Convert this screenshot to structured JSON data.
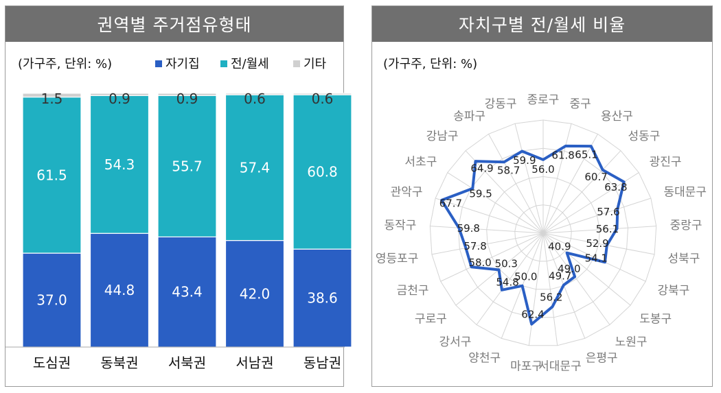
{
  "left_panel": {
    "title": "권역별 주거점유형태",
    "unit": "(가구주, 단위: %)",
    "legend": [
      {
        "label": "자기집",
        "color": "#2a5fc4"
      },
      {
        "label": "전/월세",
        "color": "#1fb0c2"
      },
      {
        "label": "기타",
        "color": "#d0d0d0"
      }
    ]
  },
  "right_panel": {
    "title": "자치구별 전/월세 비율",
    "unit": "(가구주, 단위: %)"
  },
  "chart_data": [
    {
      "type": "bar",
      "stacked": true,
      "categories": [
        "도심권",
        "동북권",
        "서북권",
        "서남권",
        "동남권"
      ],
      "series": [
        {
          "name": "자기집",
          "values": [
            37.0,
            44.8,
            43.4,
            42.0,
            38.6
          ],
          "color": "#2a5fc4"
        },
        {
          "name": "전/월세",
          "values": [
            61.5,
            54.3,
            55.7,
            57.4,
            60.8
          ],
          "color": "#1fb0c2"
        },
        {
          "name": "기타",
          "values": [
            1.5,
            0.9,
            0.9,
            0.6,
            0.6
          ],
          "color": "#d0d0d0"
        }
      ],
      "value_labels": {
        "자기집": [
          "37.0",
          "44.8",
          "43.4",
          "42.0",
          "38.6"
        ],
        "전/월세": [
          "61.5",
          "54.3",
          "55.7",
          "57.4",
          "60.8"
        ],
        "기타": [
          "1.5",
          "0.9",
          "0.9",
          "0.6",
          "0.6"
        ]
      },
      "ylim": [
        0,
        100
      ],
      "legend_position": "top"
    },
    {
      "type": "radar",
      "categories": [
        "종로구",
        "중구",
        "용산구",
        "성동구",
        "광진구",
        "동대문구",
        "중랑구",
        "성북구",
        "강북구",
        "도봉구",
        "노원구",
        "은평구",
        "서대문구",
        "마포구",
        "양천구",
        "강서구",
        "구로구",
        "금천구",
        "영등포구",
        "동작구",
        "관악구",
        "서초구",
        "강남구",
        "송파구",
        "강동구"
      ],
      "values": [
        56.0,
        61.8,
        65.1,
        60.7,
        63.8,
        57.6,
        56.1,
        52.9,
        54.1,
        40.9,
        49.0,
        49.7,
        56.2,
        62.4,
        50.0,
        54.8,
        50.3,
        58.0,
        57.8,
        59.8,
        67.7,
        59.5,
        64.9,
        58.7,
        59.9
      ],
      "value_labels": [
        "56.0",
        "61.8",
        "65.1",
        "60.7",
        "63.8",
        "57.6",
        "56.1",
        "52.9",
        "54.1",
        "40.9",
        "49.0",
        "49.7",
        "56.2",
        "62.4",
        "50.0",
        "54.8",
        "50.3",
        "58.0",
        "57.8",
        "59.8",
        "67.7",
        "59.5",
        "64.9",
        "58.7",
        "59.9"
      ],
      "rlim": [
        30,
        70
      ],
      "color": "#2a5fc4"
    }
  ]
}
